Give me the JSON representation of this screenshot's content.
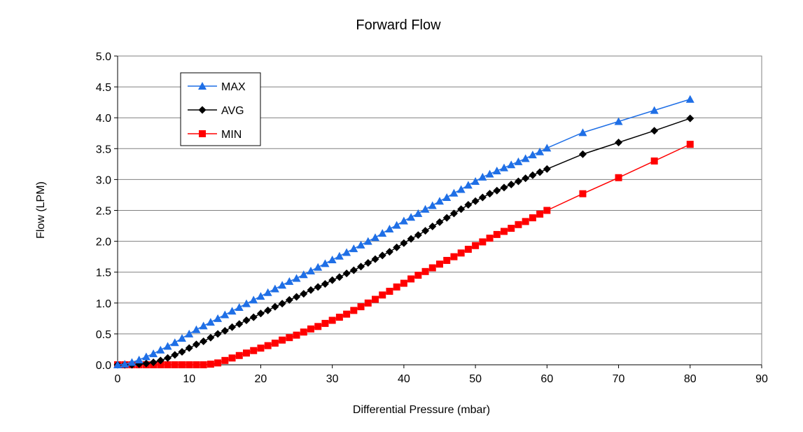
{
  "chart_data": {
    "type": "line",
    "title": "Forward Flow",
    "xlabel": "Differential Pressure (mbar)",
    "ylabel": "Flow (LPM)",
    "xlim": [
      0,
      90
    ],
    "ylim": [
      0,
      5
    ],
    "xticks": [
      "0",
      "10",
      "20",
      "30",
      "40",
      "50",
      "60",
      "70",
      "80",
      "90"
    ],
    "yticks": [
      "0.0",
      "0.5",
      "1.0",
      "1.5",
      "2.0",
      "2.5",
      "3.0",
      "3.5",
      "4.0",
      "4.5",
      "5.0"
    ],
    "grid": "horizontal",
    "legend_position": "top-left",
    "series": [
      {
        "name": "MAX",
        "color": "#1f6fe6",
        "marker": "triangle",
        "x": [
          0,
          1,
          2,
          3,
          4,
          5,
          6,
          7,
          8,
          9,
          10,
          11,
          12,
          13,
          14,
          15,
          16,
          17,
          18,
          19,
          20,
          21,
          22,
          23,
          24,
          25,
          26,
          27,
          28,
          29,
          30,
          31,
          32,
          33,
          34,
          35,
          36,
          37,
          38,
          39,
          40,
          41,
          42,
          43,
          44,
          45,
          46,
          47,
          48,
          49,
          50,
          51,
          52,
          53,
          54,
          55,
          56,
          57,
          58,
          59,
          60,
          65,
          70,
          75,
          80
        ],
        "y": [
          0.0,
          0.01,
          0.04,
          0.08,
          0.13,
          0.18,
          0.24,
          0.3,
          0.36,
          0.43,
          0.5,
          0.57,
          0.63,
          0.69,
          0.75,
          0.81,
          0.87,
          0.93,
          0.99,
          1.05,
          1.11,
          1.17,
          1.23,
          1.29,
          1.35,
          1.4,
          1.46,
          1.52,
          1.58,
          1.64,
          1.7,
          1.76,
          1.82,
          1.88,
          1.94,
          2.0,
          2.06,
          2.13,
          2.2,
          2.26,
          2.33,
          2.39,
          2.45,
          2.52,
          2.58,
          2.65,
          2.71,
          2.78,
          2.84,
          2.91,
          2.97,
          3.04,
          3.09,
          3.14,
          3.19,
          3.24,
          3.29,
          3.34,
          3.4,
          3.45,
          3.51,
          3.76,
          3.94,
          4.12,
          4.3
        ]
      },
      {
        "name": "AVG",
        "color": "#000000",
        "marker": "diamond",
        "x": [
          0,
          1,
          2,
          3,
          4,
          5,
          6,
          7,
          8,
          9,
          10,
          11,
          12,
          13,
          14,
          15,
          16,
          17,
          18,
          19,
          20,
          21,
          22,
          23,
          24,
          25,
          26,
          27,
          28,
          29,
          30,
          31,
          32,
          33,
          34,
          35,
          36,
          37,
          38,
          39,
          40,
          41,
          42,
          43,
          44,
          45,
          46,
          47,
          48,
          49,
          50,
          51,
          52,
          53,
          54,
          55,
          56,
          57,
          58,
          59,
          60,
          65,
          70,
          75,
          80
        ],
        "y": [
          0.0,
          0.0,
          0.0,
          0.01,
          0.02,
          0.04,
          0.07,
          0.11,
          0.16,
          0.21,
          0.27,
          0.33,
          0.38,
          0.44,
          0.5,
          0.55,
          0.61,
          0.66,
          0.72,
          0.77,
          0.83,
          0.88,
          0.94,
          0.99,
          1.05,
          1.1,
          1.15,
          1.21,
          1.26,
          1.31,
          1.37,
          1.42,
          1.48,
          1.53,
          1.59,
          1.65,
          1.71,
          1.77,
          1.83,
          1.9,
          1.97,
          2.04,
          2.1,
          2.17,
          2.24,
          2.31,
          2.38,
          2.45,
          2.52,
          2.59,
          2.65,
          2.71,
          2.77,
          2.82,
          2.87,
          2.92,
          2.97,
          3.02,
          3.07,
          3.12,
          3.17,
          3.41,
          3.6,
          3.79,
          3.99
        ]
      },
      {
        "name": "MIN",
        "color": "#ff0000",
        "marker": "square",
        "x": [
          0,
          1,
          2,
          3,
          4,
          5,
          6,
          7,
          8,
          9,
          10,
          11,
          12,
          13,
          14,
          15,
          16,
          17,
          18,
          19,
          20,
          21,
          22,
          23,
          24,
          25,
          26,
          27,
          28,
          29,
          30,
          31,
          32,
          33,
          34,
          35,
          36,
          37,
          38,
          39,
          40,
          41,
          42,
          43,
          44,
          45,
          46,
          47,
          48,
          49,
          50,
          51,
          52,
          53,
          54,
          55,
          56,
          57,
          58,
          59,
          60,
          65,
          70,
          75,
          80
        ],
        "y": [
          0.0,
          0.0,
          0.0,
          0.0,
          0.0,
          0.0,
          0.0,
          0.0,
          0.0,
          0.0,
          0.0,
          0.0,
          0.0,
          0.01,
          0.03,
          0.07,
          0.11,
          0.15,
          0.19,
          0.23,
          0.27,
          0.31,
          0.35,
          0.4,
          0.44,
          0.48,
          0.53,
          0.58,
          0.62,
          0.67,
          0.72,
          0.77,
          0.82,
          0.88,
          0.94,
          1.0,
          1.06,
          1.13,
          1.19,
          1.26,
          1.32,
          1.39,
          1.45,
          1.51,
          1.57,
          1.63,
          1.69,
          1.75,
          1.81,
          1.87,
          1.93,
          1.99,
          2.05,
          2.11,
          2.16,
          2.21,
          2.27,
          2.32,
          2.38,
          2.44,
          2.5,
          2.77,
          3.03,
          3.3,
          3.57
        ]
      }
    ]
  }
}
